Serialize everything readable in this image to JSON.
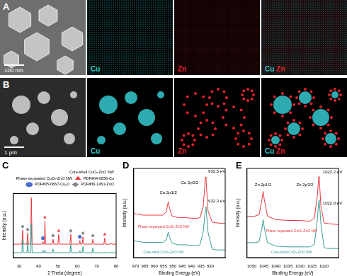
{
  "figure": {
    "images": [
      {
        "panel": "A",
        "scale_bar": "100 nm"
      },
      {
        "panel": "B",
        "scale_bar": "1 μm"
      }
    ],
    "elements": [
      {
        "symbol": "Cu",
        "color": "#35c9cf"
      },
      {
        "symbol": "Zn",
        "color": "#e0202a"
      }
    ]
  },
  "chart_data": [
    {
      "panel": "C",
      "type": "line",
      "x_label": "2 Theta (degree)",
      "y_label": "Intensity (a.u.)",
      "xlim": [
        27,
        80
      ],
      "xticks": [
        30,
        40,
        50,
        60,
        70,
        80
      ],
      "ylim": [
        0,
        105
      ],
      "tick_labels": "x",
      "grid": false,
      "legend": "top",
      "series": [
        {
          "name": "Core-shell CuOₓ-ZnO NW",
          "color": "#3a9e96",
          "x": [
            27,
            31.4,
            31.8,
            32.2,
            34,
            34.4,
            34.8,
            35.9,
            36.3,
            36.7,
            42,
            42.3,
            42.6,
            43,
            43.3,
            43.6,
            47.1,
            47.5,
            47.9,
            50,
            50.4,
            50.8,
            56.2,
            56.6,
            57,
            61,
            61.3,
            61.6,
            62.5,
            62.9,
            63.3,
            67.6,
            68,
            68.4,
            73.7,
            74.1,
            74.5,
            77,
            77.4,
            77.8,
            80
          ],
          "values": [
            8,
            8,
            30,
            8,
            8,
            25,
            8,
            8,
            55,
            8,
            8,
            12,
            8,
            8,
            12,
            8,
            8,
            14,
            8,
            8,
            9,
            8,
            8,
            22,
            8,
            8,
            11,
            8,
            8,
            18,
            8,
            8,
            16,
            8,
            8,
            9,
            8,
            8,
            9,
            8,
            8
          ]
        },
        {
          "name": "Phase separated CuOₓ-ZnO NW",
          "color": "#e8383d",
          "x": [
            27,
            31.4,
            31.8,
            32.2,
            34,
            34.4,
            34.8,
            35.9,
            36.3,
            36.7,
            42,
            42.3,
            42.6,
            43,
            43.3,
            43.6,
            47.1,
            47.5,
            47.9,
            50,
            50.4,
            50.8,
            56.2,
            56.6,
            57,
            61,
            61.3,
            61.6,
            62.5,
            62.9,
            63.3,
            67.6,
            68,
            68.4,
            73.7,
            74.1,
            74.5,
            77,
            77.4,
            77.8,
            80
          ],
          "values": [
            22,
            22,
            45,
            22,
            22,
            40,
            22,
            22,
            98,
            22,
            22,
            26,
            22,
            22,
            60,
            22,
            22,
            30,
            22,
            22,
            38,
            22,
            22,
            38,
            22,
            22,
            28,
            22,
            22,
            34,
            22,
            22,
            30,
            22,
            22,
            32,
            22,
            22,
            24,
            22,
            22
          ]
        },
        {
          "name": "PDF#04-0836-Cu",
          "type": "scatter",
          "marker": "triangle",
          "color": "#e8383d",
          "x": [
            43.3,
            50.4,
            74.1
          ],
          "values": [
            66,
            44,
            38
          ]
        },
        {
          "name": "PDF#05-0667-Cu₂O",
          "type": "scatter",
          "marker": "circle",
          "color": "#4a6fd0",
          "x": [
            42.3,
            61.3
          ],
          "values": [
            32,
            34
          ]
        },
        {
          "name": "PDF#36-1451-ZnO",
          "type": "scatter",
          "marker": "diamond",
          "color": "#888888",
          "x": [
            31.8,
            34.4,
            47.5,
            56.6,
            62.9,
            68
          ],
          "values": [
            51,
            46,
            36,
            44,
            40,
            36
          ]
        }
      ]
    },
    {
      "panel": "D",
      "type": "line",
      "x_label": "Binding Energy (eV)",
      "y_label": "Intensity (a.u.)",
      "xlim": [
        971,
        922
      ],
      "xticks": [
        970,
        965,
        960,
        955,
        950,
        945,
        940,
        935,
        930
      ],
      "ylim": [
        0,
        105
      ],
      "tick_labels": "x",
      "grid": false,
      "series": [
        {
          "name": "Phase separated CuOₓ-ZnO NW",
          "color": "#e8383d",
          "x": [
            971,
            966,
            960,
            955.5,
            953.5,
            952.5,
            951.8,
            950.5,
            947,
            943,
            938,
            935.5,
            933.8,
            932.5,
            932.3,
            931.2,
            929,
            927,
            922
          ],
          "values": [
            52,
            50,
            50,
            50,
            54,
            66,
            58,
            49,
            47,
            47,
            46,
            47,
            60,
            95,
            93,
            55,
            42,
            41,
            40
          ]
        },
        {
          "name": "Core-shell CuOₓ-ZnO NW",
          "color": "#3a9e96",
          "x": [
            971,
            966,
            960,
            955.5,
            953.5,
            952.5,
            951.8,
            950.5,
            947,
            943,
            938,
            935.5,
            933.8,
            932.5,
            932.3,
            931.2,
            929,
            927,
            922
          ],
          "values": [
            20,
            18,
            18,
            18,
            21,
            30,
            24,
            17,
            15,
            15,
            14,
            15,
            30,
            58,
            60,
            30,
            10,
            9,
            9
          ]
        }
      ],
      "annotations": [
        {
          "text": "Cu 2p1/2",
          "x": 952.5,
          "y": 76
        },
        {
          "text": "Cu 2p3/2",
          "x": 941,
          "y": 88
        },
        {
          "text": "932.5 eV",
          "x": 926.5,
          "y": 101
        },
        {
          "text": "932.3 eV",
          "x": 926.5,
          "y": 66
        },
        {
          "text": "Phase separated CuOₓ-ZnO NW",
          "x": 955,
          "y": 36,
          "color": "#e8383d"
        },
        {
          "text": "Core-shell CuOₓ-ZnO NW",
          "x": 955,
          "y": 6,
          "color": "#3a9e96"
        }
      ]
    },
    {
      "panel": "E",
      "type": "line",
      "x_label": "Binding Energy (eV)",
      "y_label": "Intensity (a.u.)",
      "xlim": [
        1052,
        1014
      ],
      "xticks": [
        1050,
        1045,
        1040,
        1035,
        1030,
        1025,
        1020
      ],
      "ylim": [
        0,
        108
      ],
      "tick_labels": "x",
      "grid": false,
      "series": [
        {
          "name": "Phase separated CuOₓ-ZnO NW",
          "color": "#e8383d",
          "x": [
            1052,
            1049,
            1047,
            1045.8,
            1045.3,
            1044.8,
            1043.5,
            1040,
            1035,
            1030,
            1026,
            1024,
            1022.8,
            1022.2,
            1022,
            1021.3,
            1020,
            1018,
            1014
          ],
          "values": [
            50,
            50,
            52,
            70,
            80,
            70,
            50,
            46,
            45,
            45,
            44,
            48,
            75,
            98,
            96,
            62,
            42,
            41,
            40
          ]
        },
        {
          "name": "Core-shell CuOₓ-ZnO NW",
          "color": "#3a9e96",
          "x": [
            1052,
            1049,
            1047,
            1045.8,
            1045.3,
            1044.8,
            1043.5,
            1040,
            1035,
            1030,
            1026,
            1024,
            1022.8,
            1022.2,
            1022,
            1021.3,
            1020,
            1018,
            1014
          ],
          "values": [
            18,
            18,
            19,
            36,
            46,
            36,
            18,
            14,
            13,
            13,
            13,
            16,
            46,
            68,
            70,
            41,
            12,
            11,
            11
          ]
        }
      ],
      "annotations": [
        {
          "text": "Zn 2p1/2",
          "x": 1045.3,
          "y": 88
        },
        {
          "text": "Zn 2p3/2",
          "x": 1028,
          "y": 88
        },
        {
          "text": "1022.2 eV",
          "x": 1016.5,
          "y": 103
        },
        {
          "text": "1022.0 eV",
          "x": 1016.5,
          "y": 66
        },
        {
          "text": "Phase separated CuOₓ-ZnO NW",
          "x": 1033.5,
          "y": 32,
          "color": "#e8383d"
        },
        {
          "text": "Core-shell CuOₓ-ZnO NW",
          "x": 1033.5,
          "y": 6,
          "color": "#3a9e96"
        }
      ]
    }
  ]
}
